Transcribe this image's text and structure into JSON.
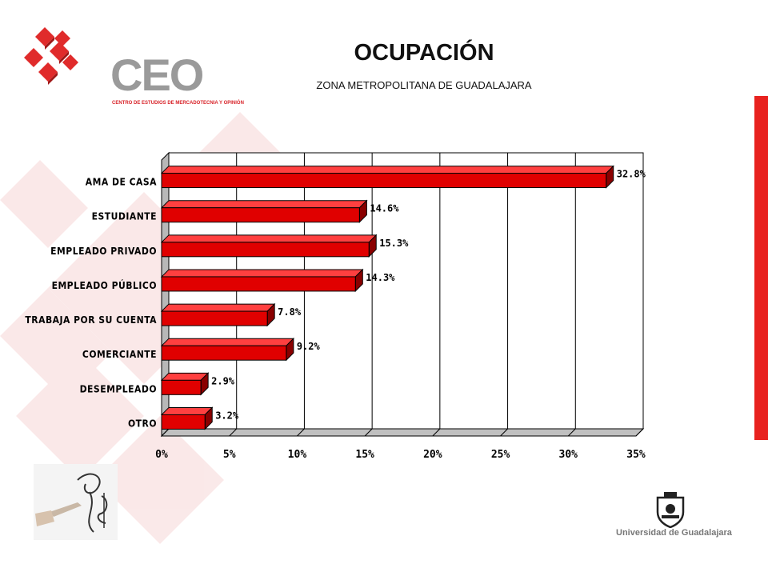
{
  "logo": {
    "name": "CEO",
    "tagline": "CENTRO DE ESTUDIOS DE MERCADOTECNIA Y OPINIÓN"
  },
  "header": {
    "title": "OCUPACIÓN",
    "subtitle": "ZONA METROPOLITANA DE GUADALAJARA"
  },
  "footer": {
    "university": "Universidad de Guadalajara"
  },
  "colors": {
    "bar": "#e00000",
    "bar_dark": "#8a0000",
    "accent_stripe": "#e8221f",
    "logo_red": "#e02b2b",
    "logo_gray": "#9a9a9a"
  },
  "chart_data": {
    "type": "bar",
    "orientation": "horizontal",
    "categories": [
      "AMA DE CASA",
      "ESTUDIANTE",
      "EMPLEADO PRIVADO",
      "EMPLEADO PÚBLICO",
      "TRABAJA POR SU CUENTA",
      "COMERCIANTE",
      "DESEMPLEADO",
      "OTRO"
    ],
    "values": [
      32.8,
      14.6,
      15.3,
      14.3,
      7.8,
      9.2,
      2.9,
      3.2
    ],
    "value_labels": [
      "32.8%",
      "14.6%",
      "15.3%",
      "14.3%",
      "7.8%",
      "9.2%",
      "2.9%",
      "3.2%"
    ],
    "xlim": [
      0,
      35
    ],
    "xticks": [
      0,
      5,
      10,
      15,
      20,
      25,
      30,
      35
    ],
    "xtick_labels": [
      "0%",
      "5%",
      "10%",
      "15%",
      "20%",
      "25%",
      "30%",
      "35%"
    ],
    "grid": "vertical",
    "style": "3d"
  }
}
